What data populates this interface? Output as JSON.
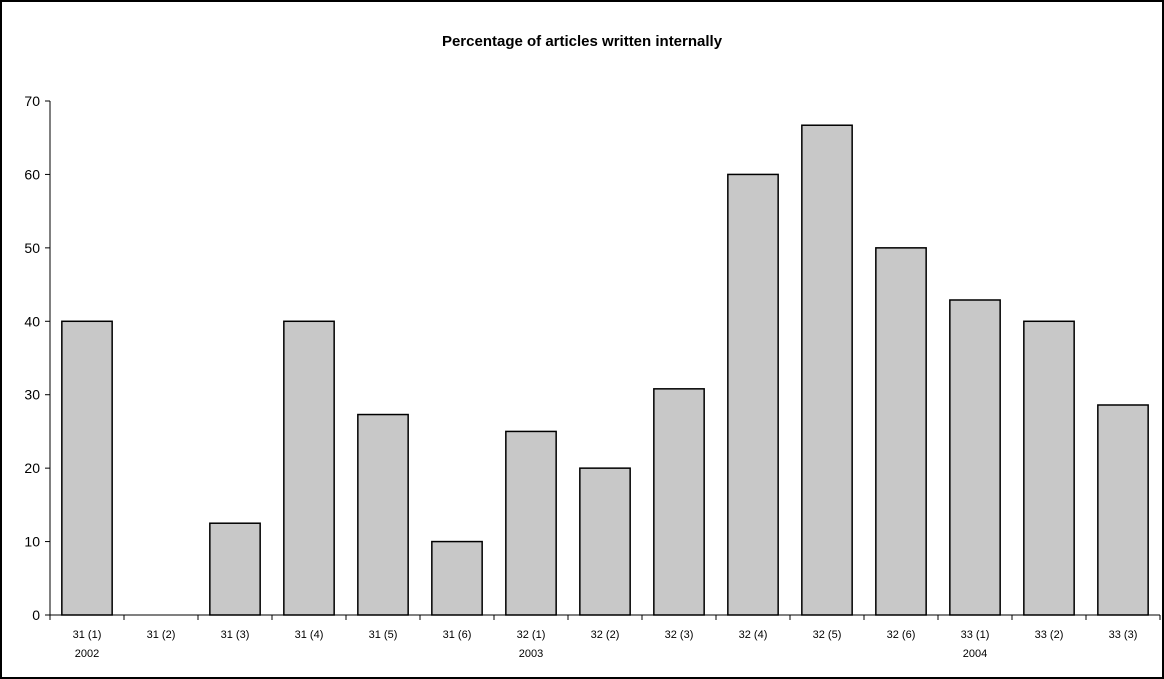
{
  "chart_data": {
    "type": "bar",
    "title": "Percentage of articles written internally",
    "xlabel": "",
    "ylabel": "",
    "ylim": [
      0,
      70
    ],
    "yticks": [
      0,
      10,
      20,
      30,
      40,
      50,
      60,
      70
    ],
    "grid": false,
    "legend": "none",
    "bar_color": "#C8C8C8",
    "categories": [
      "31 (1)",
      "31 (2)",
      "31 (3)",
      "31 (4)",
      "31 (5)",
      "31 (6)",
      "32 (1)",
      "32 (2)",
      "32 (3)",
      "32 (4)",
      "32 (5)",
      "32 (6)",
      "33 (1)",
      "33 (2)",
      "33 (3)"
    ],
    "values": [
      40,
      0,
      12.5,
      40,
      27.3,
      10,
      25,
      20,
      30.8,
      60,
      66.7,
      50,
      42.9,
      40,
      28.6
    ],
    "year_labels": [
      {
        "category_index": 0,
        "label": "2002"
      },
      {
        "category_index": 6,
        "label": "2003"
      },
      {
        "category_index": 12,
        "label": "2004"
      }
    ]
  }
}
